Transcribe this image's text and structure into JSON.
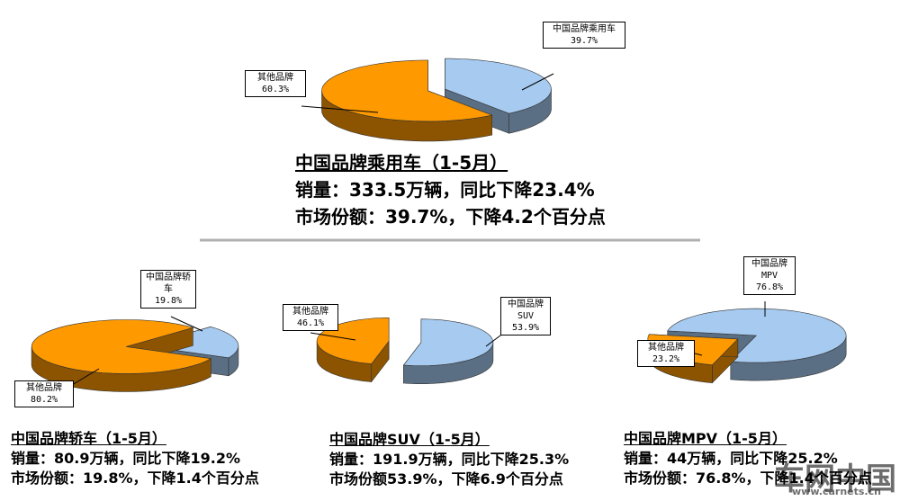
{
  "chart_data": [
    {
      "type": "pie",
      "title": "中国品牌乘用车（1-5月）",
      "annotations": [
        "销量：333.5万辆，同比下降23.4%",
        "市场份额：39.7%，下降4.2个百分点"
      ],
      "categories": [
        "中国品牌乘用车",
        "其他品牌"
      ],
      "values": [
        39.7,
        60.3
      ],
      "value_labels": [
        "39.7%",
        "60.3%"
      ],
      "colors": [
        "#a6caf0",
        "#ff9900"
      ]
    },
    {
      "type": "pie",
      "title": "中国品牌轿车（1-5月）",
      "annotations": [
        "销量：80.9万辆，同比下降19.2%",
        "市场份额：19.8%，下降1.4个百分点"
      ],
      "categories": [
        "中国品牌轿车",
        "其他品牌"
      ],
      "values": [
        19.8,
        80.2
      ],
      "value_labels": [
        "19.8%",
        "80.2%"
      ],
      "colors": [
        "#a6caf0",
        "#ff9900"
      ]
    },
    {
      "type": "pie",
      "title": "中国品牌SUV（1-5月）",
      "annotations": [
        "销量：191.9万辆，同比下降25.3%",
        "市场份额53.9%，下降6.9个百分点"
      ],
      "categories": [
        "中国品牌SUV",
        "其他品牌"
      ],
      "values": [
        53.9,
        46.1
      ],
      "value_labels": [
        "53.9%",
        "46.1%"
      ],
      "colors": [
        "#a6caf0",
        "#ff9900"
      ]
    },
    {
      "type": "pie",
      "title": "中国品牌MPV（1-5月）",
      "annotations": [
        "销量：44万辆，同比下降25.2%",
        "市场份额：76.8%，下降1.4个百分点"
      ],
      "categories": [
        "中国品牌MPV",
        "其他品牌"
      ],
      "values": [
        76.8,
        23.2
      ],
      "value_labels": [
        "76.8%",
        "23.2%"
      ],
      "colors": [
        "#a6caf0",
        "#ff9900"
      ]
    }
  ],
  "watermark": {
    "name": "车网中国",
    "url": "www.carnets.cn"
  }
}
